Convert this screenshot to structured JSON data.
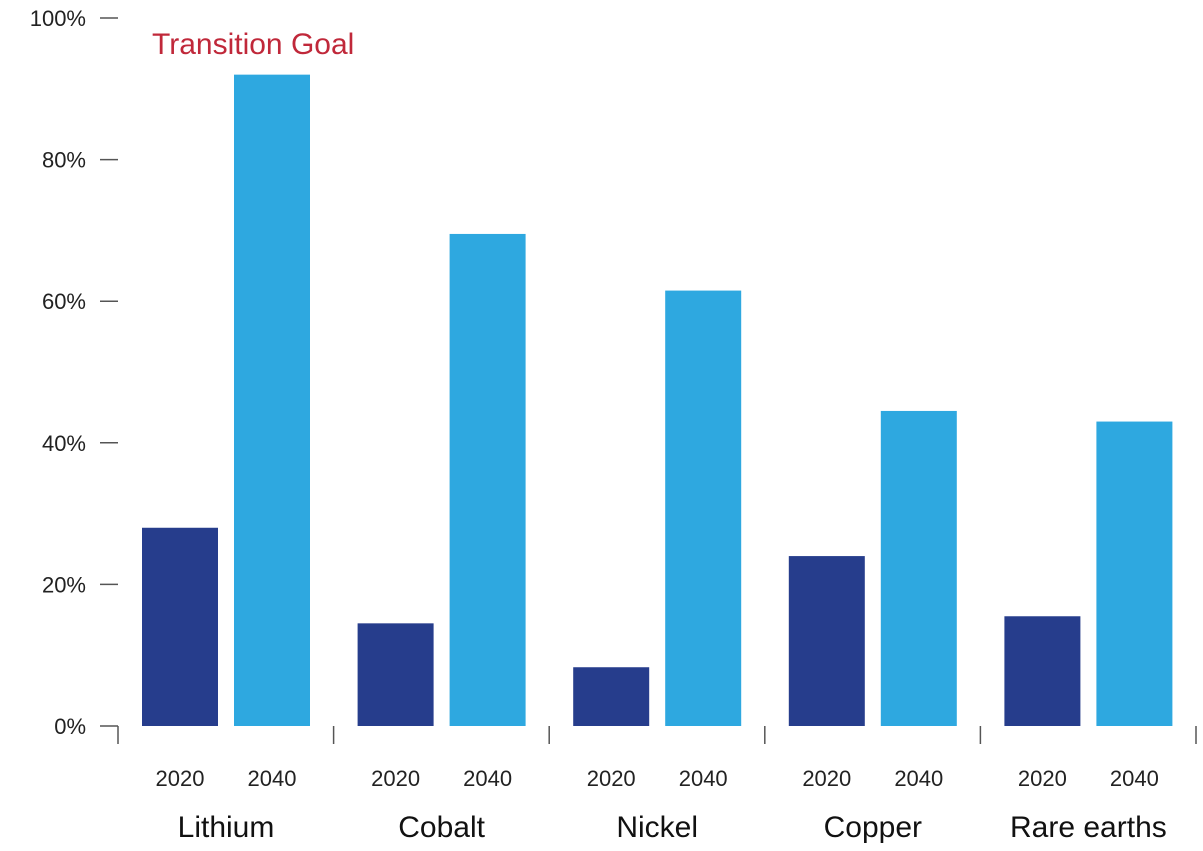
{
  "chart_data": {
    "type": "bar",
    "title": "",
    "xlabel": "",
    "ylabel": "",
    "annotation": "Transition Goal",
    "categories": [
      "Lithium",
      "Cobalt",
      "Nickel",
      "Copper",
      "Rare earths"
    ],
    "sub_categories": [
      "2020",
      "2040"
    ],
    "series": [
      {
        "name": "2020",
        "values": [
          28,
          14.5,
          8.3,
          24,
          15.5
        ]
      },
      {
        "name": "2040",
        "values": [
          92,
          69.5,
          61.5,
          44.5,
          43
        ]
      }
    ],
    "ylim": [
      0,
      100
    ],
    "yticks": [
      "0%",
      "20%",
      "40%",
      "60%",
      "80%",
      "100%"
    ],
    "ytick_values": [
      0,
      20,
      40,
      60,
      80,
      100
    ],
    "grid": false,
    "legend": "none"
  },
  "colors": {
    "2020": "#263d8c",
    "2040": "#2ea8e0",
    "annotation": "#c0283a",
    "axis": "#555555"
  }
}
